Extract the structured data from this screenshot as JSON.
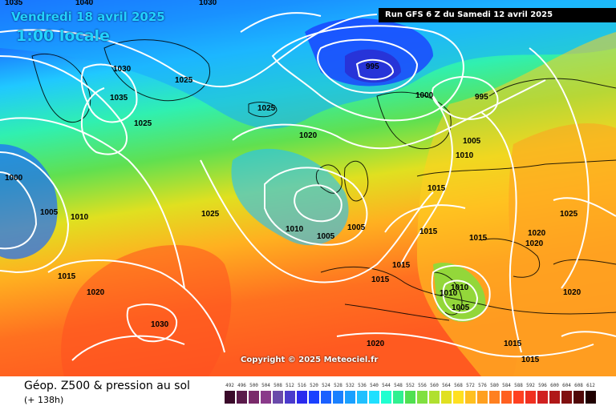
{
  "header": {
    "date": "Vendredi 18 avril 2025",
    "time": "1:00 locale",
    "run": "Run GFS 6 Z du Samedi 12 avril 2025"
  },
  "footer": {
    "copyright": "Copyright © 2025 Meteociel.fr",
    "legend_title": "Géop. Z500 & pression au sol",
    "forecast_hour": "(+ 138h)"
  },
  "pressure_labels": [
    "1035",
    "1040",
    "1030",
    "1000",
    "1005",
    "1010",
    "1030",
    "1035",
    "1025",
    "1025",
    "1025",
    "1020",
    "995",
    "1000",
    "995",
    "1005",
    "1010",
    "1025",
    "1015",
    "1010",
    "1005",
    "1005",
    "1015",
    "1015",
    "1020",
    "1020",
    "1015",
    "1025",
    "1015",
    "1010",
    "1010",
    "1005",
    "1020",
    "1030",
    "1020",
    "1015",
    "1015",
    "1015",
    "1020"
  ],
  "z500_scale": {
    "values": [
      "492",
      "496",
      "500",
      "504",
      "508",
      "512",
      "516",
      "520",
      "524",
      "528",
      "532",
      "536",
      "540",
      "544",
      "548",
      "552",
      "556",
      "560",
      "564",
      "568",
      "572",
      "576",
      "580",
      "584",
      "588",
      "592",
      "596",
      "600",
      "604",
      "608",
      "612"
    ],
    "colors": [
      "#3a0a2a",
      "#5a1a4a",
      "#7a2a6a",
      "#8a3a8a",
      "#6a4aaa",
      "#4a3acc",
      "#2a2aee",
      "#1a40ff",
      "#1a60ff",
      "#1a80ff",
      "#1aa0ff",
      "#20c0ff",
      "#20e0ff",
      "#20ffd0",
      "#30f090",
      "#50e050",
      "#80e040",
      "#b0e030",
      "#e0e020",
      "#ffe020",
      "#ffc020",
      "#ffa020",
      "#ff8020",
      "#ff6020",
      "#ff4020",
      "#f03020",
      "#d02020",
      "#b01818",
      "#801010",
      "#500808",
      "#200000"
    ]
  }
}
